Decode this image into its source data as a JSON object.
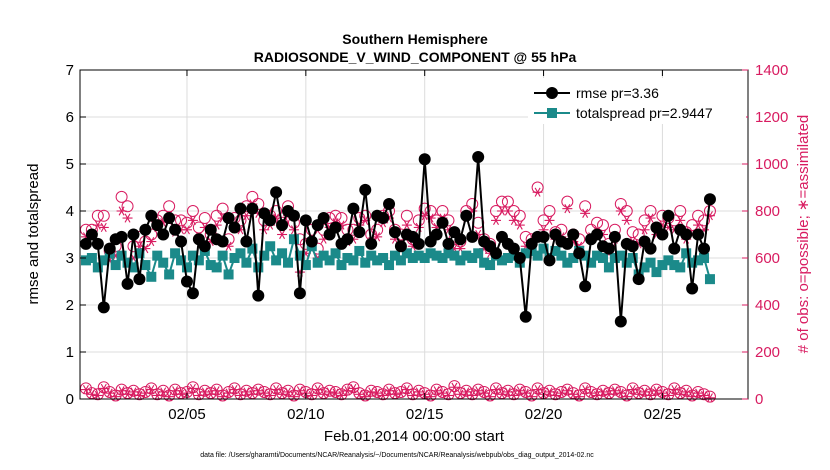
{
  "chart_data": {
    "type": "line",
    "title": "Southern Hemisphere",
    "subtitle": "RADIOSONDE_V_WIND_COMPONENT @ 55 hPa",
    "xlabel": "Feb.01,2014 00:00:00 start",
    "ylabel": "rmse and totalspread",
    "y2label": "# of obs: o=possible; ∗=assimilated",
    "footnote": "data file: /Users/gharamti/Documents/NCAR/Reanalysis/~/Documents/NCAR/Reanalysis/webpub/obs_diag_output_2014-02.nc",
    "xlim": [
      0.5,
      28.6
    ],
    "ylim": [
      0,
      7
    ],
    "y2lim": [
      0,
      1400
    ],
    "xticks": [
      5,
      10,
      15,
      20,
      25
    ],
    "xtick_labels": [
      "02/05",
      "02/10",
      "02/15",
      "02/20",
      "02/25"
    ],
    "yticks": [
      0,
      1,
      2,
      3,
      4,
      5,
      6,
      7
    ],
    "ytick_labels": [
      "0",
      "1",
      "2",
      "3",
      "4",
      "5",
      "6",
      "7"
    ],
    "y2ticks": [
      0,
      200,
      400,
      600,
      800,
      1000,
      1200,
      1400
    ],
    "y2tick_labels": [
      "0",
      "200",
      "400",
      "600",
      "800",
      "1000",
      "1200",
      "1400"
    ],
    "colors": {
      "rmse": "#000000",
      "totalspread": "#1b8a8a",
      "obs": "#d81b60",
      "grid": "#dcdcdc"
    },
    "x_start": 0.75,
    "x_step": 0.25,
    "series": [
      {
        "name": "rmse",
        "legend": "rmse pr=3.36",
        "values": [
          3.3,
          3.5,
          3.3,
          1.95,
          3.2,
          3.4,
          3.45,
          2.45,
          3.5,
          2.55,
          3.6,
          3.9,
          3.7,
          3.5,
          3.85,
          3.6,
          3.35,
          2.5,
          2.25,
          3.4,
          3.25,
          3.6,
          3.4,
          3.35,
          3.85,
          3.65,
          4.05,
          3.35,
          4.05,
          2.2,
          3.95,
          3.8,
          4.4,
          3.7,
          4.0,
          3.9,
          2.25,
          3.8,
          3.35,
          3.7,
          3.85,
          3.5,
          3.65,
          3.3,
          3.4,
          4.05,
          3.55,
          4.45,
          3.3,
          3.9,
          3.85,
          4.15,
          3.55,
          3.25,
          3.5,
          3.45,
          3.3,
          5.1,
          3.35,
          3.5,
          3.75,
          3.3,
          3.55,
          3.4,
          3.9,
          3.45,
          5.15,
          3.35,
          3.25,
          3.1,
          3.45,
          3.3,
          3.2,
          3.0,
          1.75,
          3.3,
          3.45,
          3.45,
          2.95,
          3.5,
          3.35,
          3.3,
          3.5,
          3.1,
          2.4,
          3.4,
          3.5,
          3.25,
          3.2,
          3.45,
          1.65,
          3.3,
          3.25,
          2.55,
          3.35,
          3.2,
          3.65,
          3.5,
          3.9,
          3.2,
          3.6,
          3.5,
          2.35,
          3.5,
          3.2,
          4.25
        ],
        "color": "#000000"
      },
      {
        "name": "totalspread",
        "legend": "totalspread pr=2.9447",
        "values": [
          2.95,
          3.0,
          2.8,
          2.95,
          3.1,
          2.85,
          3.05,
          2.9,
          2.8,
          3.1,
          2.85,
          2.6,
          3.05,
          2.9,
          2.65,
          3.1,
          2.95,
          2.8,
          3.05,
          2.95,
          3.15,
          2.85,
          2.8,
          3.05,
          2.65,
          3.0,
          3.1,
          2.9,
          3.2,
          2.8,
          3.05,
          3.25,
          2.95,
          3.1,
          2.9,
          3.4,
          3.05,
          2.85,
          3.25,
          2.9,
          3.05,
          2.95,
          3.1,
          2.85,
          3.0,
          2.95,
          3.15,
          2.9,
          3.05,
          2.95,
          3.0,
          2.85,
          3.05,
          2.95,
          3.1,
          3.0,
          3.05,
          3.0,
          3.1,
          3.05,
          3.0,
          3.1,
          3.05,
          2.95,
          3.05,
          3.0,
          3.1,
          2.9,
          2.85,
          3.05,
          2.95,
          3.0,
          3.05,
          2.9,
          3.1,
          3.15,
          3.05,
          3.2,
          3.0,
          3.15,
          3.05,
          2.9,
          3.0,
          3.15,
          3.05,
          2.9,
          3.05,
          3.0,
          2.8,
          3.0,
          3.05,
          2.9,
          3.0,
          2.65,
          2.8,
          2.9,
          2.7,
          2.85,
          2.95,
          2.85,
          2.8,
          3.1,
          2.9,
          2.95,
          3.0,
          2.55
        ],
        "color": "#1b8a8a"
      },
      {
        "name": "obs_possible",
        "legend": "possible",
        "axis": "right",
        "values": [
          720,
          720,
          780,
          780,
          630,
          650,
          860,
          820,
          650,
          690,
          670,
          700,
          760,
          780,
          820,
          760,
          760,
          750,
          800,
          730,
          770,
          700,
          780,
          810,
          680,
          770,
          760,
          820,
          860,
          830,
          760,
          780,
          800,
          750,
          820,
          750,
          680,
          660,
          720,
          640,
          720,
          770,
          780,
          770,
          720,
          720,
          770,
          780,
          700,
          720,
          780,
          800,
          720,
          700,
          780,
          680,
          760,
          810,
          800,
          760,
          800,
          760,
          680,
          670,
          800,
          830,
          750,
          680,
          660,
          800,
          840,
          840,
          800,
          780,
          690,
          680,
          900,
          760,
          800,
          710,
          720,
          840,
          700,
          680,
          820,
          720,
          750,
          740,
          660,
          720,
          830,
          800,
          710,
          700,
          760,
          800,
          730,
          780,
          770,
          760,
          800,
          710,
          740,
          780,
          760,
          800
        ],
        "color": "#d81b60"
      },
      {
        "name": "obs_assimilated",
        "legend": "assimilated",
        "axis": "right",
        "values": [
          690,
          700,
          740,
          730,
          590,
          610,
          800,
          770,
          600,
          650,
          640,
          670,
          730,
          750,
          780,
          710,
          720,
          720,
          760,
          690,
          730,
          670,
          740,
          770,
          650,
          730,
          720,
          780,
          830,
          790,
          720,
          740,
          770,
          700,
          780,
          720,
          540,
          620,
          680,
          600,
          680,
          730,
          750,
          740,
          670,
          680,
          740,
          760,
          670,
          690,
          750,
          770,
          680,
          660,
          740,
          650,
          730,
          780,
          770,
          730,
          770,
          720,
          640,
          640,
          770,
          800,
          700,
          640,
          620,
          760,
          800,
          800,
          760,
          740,
          650,
          650,
          880,
          720,
          760,
          680,
          690,
          810,
          670,
          650,
          790,
          690,
          710,
          700,
          620,
          680,
          800,
          760,
          670,
          660,
          720,
          770,
          700,
          740,
          730,
          720,
          760,
          680,
          700,
          740,
          720,
          780
        ],
        "color": "#d81b60"
      },
      {
        "name": "obs_bottom_possible",
        "axis": "right",
        "values": [
          45,
          25,
          20,
          50,
          30,
          15,
          40,
          25,
          35,
          20,
          30,
          45,
          20,
          35,
          15,
          40,
          25,
          30,
          50,
          20,
          35,
          25,
          40,
          15,
          30,
          45,
          20,
          35,
          25,
          40,
          30,
          20,
          45,
          25,
          35,
          15,
          40,
          30,
          20,
          45,
          25,
          35,
          30,
          20,
          40,
          50,
          25,
          15,
          35,
          30,
          20,
          40,
          25,
          30,
          45,
          20,
          35,
          25,
          15,
          40,
          30,
          20,
          55,
          25,
          35,
          20,
          40,
          30,
          15,
          45,
          25,
          35,
          20,
          40,
          30,
          15,
          45,
          25,
          35,
          20,
          30,
          40,
          25,
          15,
          45,
          30,
          20,
          35,
          25,
          40,
          30,
          15,
          45,
          25,
          35,
          20,
          40,
          30,
          20,
          45,
          25,
          35,
          15,
          30,
          20,
          10
        ],
        "color": "#d81b60"
      },
      {
        "name": "obs_bottom_assimilated",
        "axis": "right",
        "values": [
          40,
          20,
          15,
          45,
          25,
          10,
          35,
          20,
          30,
          15,
          25,
          40,
          15,
          30,
          10,
          35,
          20,
          25,
          45,
          15,
          30,
          20,
          35,
          10,
          25,
          40,
          15,
          30,
          20,
          35,
          25,
          15,
          40,
          20,
          30,
          10,
          35,
          25,
          15,
          40,
          20,
          30,
          25,
          15,
          35,
          45,
          20,
          10,
          30,
          25,
          15,
          35,
          20,
          25,
          40,
          15,
          30,
          20,
          10,
          35,
          25,
          15,
          50,
          20,
          30,
          15,
          35,
          25,
          10,
          40,
          20,
          30,
          15,
          35,
          25,
          10,
          40,
          20,
          30,
          15,
          25,
          35,
          20,
          10,
          40,
          25,
          15,
          30,
          20,
          35,
          25,
          10,
          40,
          20,
          30,
          15,
          35,
          25,
          15,
          40,
          20,
          30,
          10,
          25,
          15,
          5
        ],
        "color": "#d81b60"
      }
    ]
  }
}
